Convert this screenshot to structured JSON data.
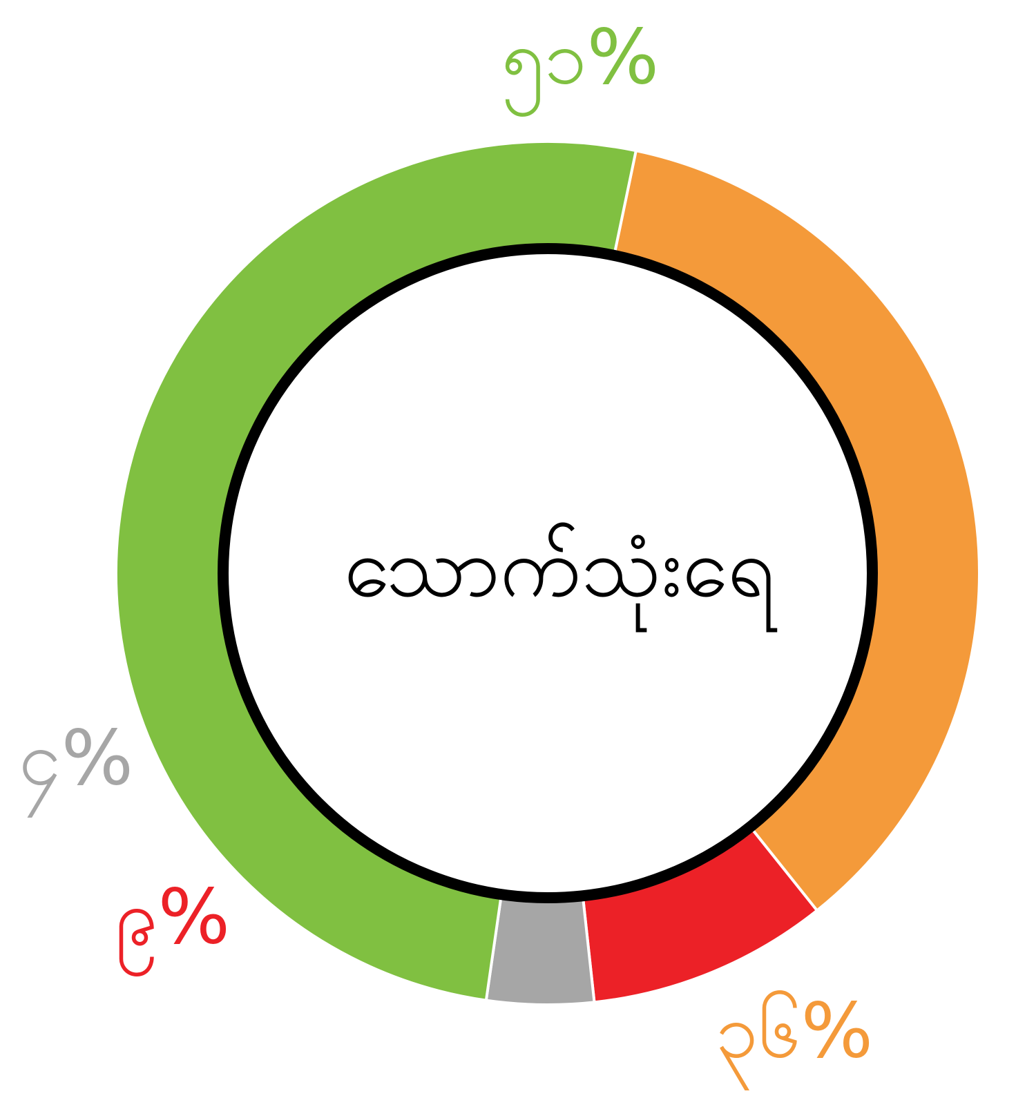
{
  "chart_data": {
    "type": "donut",
    "title": "သောက်သုံးရေ",
    "categories": [
      null,
      null,
      null,
      null
    ],
    "values": [
      36,
      9,
      4,
      51
    ],
    "value_labels": [
      "၃၆%",
      "၉%",
      "၄%",
      "၅၁%"
    ],
    "colors": [
      "#f49a3a",
      "#ec2127",
      "#a6a6a6",
      "#80c041"
    ]
  }
}
